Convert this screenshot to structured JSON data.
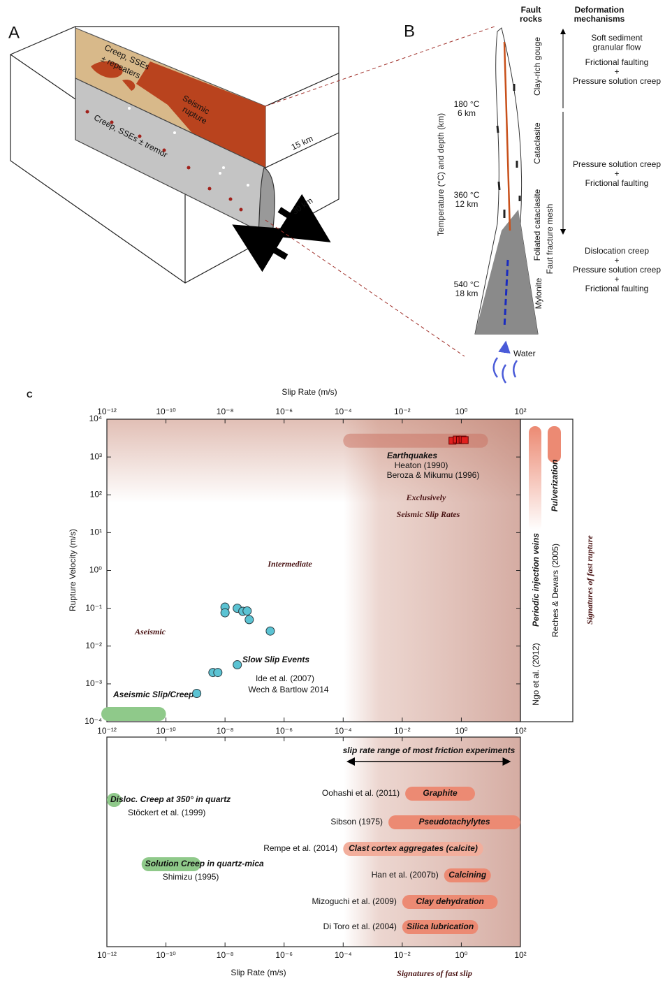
{
  "panel_a": {
    "label": "A",
    "creep_top": [
      "Creep, SSEs",
      "± repeaters"
    ],
    "seismic": [
      "Seismic",
      "rupture"
    ],
    "creep_bottom": "Creep, SSEs ± tremor",
    "depth": "15 km",
    "length": "30 km"
  },
  "panel_b": {
    "label": "B",
    "header_fault_rocks": [
      "Fault",
      "rocks"
    ],
    "header_mechanisms": [
      "Deformation",
      "mechanisms"
    ],
    "axis_label": "Temperature (°C) and depth (km)",
    "depths": [
      {
        "temperature": "180 °C",
        "depth": "6 km"
      },
      {
        "temperature": "360 °C",
        "depth": "12 km"
      },
      {
        "temperature": "540 °C",
        "depth": "18 km"
      }
    ],
    "fault_rocks": [
      "Clay-rich gouge",
      "Cataclasite",
      "Foliated cataclasite",
      "Faut fracture mesh",
      "Mylonite"
    ],
    "mechanisms": [
      [
        "Soft sediment",
        "granular flow"
      ],
      [
        "Frictional faulting",
        "+",
        "Pressure solution creep"
      ],
      [
        "Pressure solution creep",
        "+",
        "Frictional faulting"
      ],
      [
        "Dislocation creep",
        "+",
        "Pressure solution creep",
        "+",
        "Frictional faulting"
      ]
    ],
    "water": "Water"
  },
  "chart_data": {
    "type": "scatter",
    "label": "C",
    "x_label": "Slip Rate (m/s)",
    "y_label": "Rupture Velocity (m/s)",
    "x_log": true,
    "y_log": true,
    "xlim": [
      1e-12,
      100
    ],
    "ylim": [
      0.0001,
      10000
    ],
    "xticks": [
      {
        "value": 1e-12,
        "label": "10⁻¹²"
      },
      {
        "value": 1e-10,
        "label": "10⁻¹⁰"
      },
      {
        "value": 1e-08,
        "label": "10⁻⁸"
      },
      {
        "value": 1e-06,
        "label": "10⁻⁶"
      },
      {
        "value": 0.0001,
        "label": "10⁻⁴"
      },
      {
        "value": 0.01,
        "label": "10⁻²"
      },
      {
        "value": 1,
        "label": "10⁰"
      },
      {
        "value": 100,
        "label": "10²"
      }
    ],
    "yticks": [
      {
        "value": 0.0001,
        "label": "10⁻⁴"
      },
      {
        "value": 0.001,
        "label": "10⁻³"
      },
      {
        "value": 0.01,
        "label": "10⁻²"
      },
      {
        "value": 0.1,
        "label": "10⁻¹"
      },
      {
        "value": 1,
        "label": "10⁰"
      },
      {
        "value": 10,
        "label": "10¹"
      },
      {
        "value": 100,
        "label": "10²"
      },
      {
        "value": 1000,
        "label": "10³"
      },
      {
        "value": 10000,
        "label": "10⁴"
      }
    ],
    "series": [
      {
        "name": "Slow Slip Events",
        "color": "#5bc3d3",
        "marker": "circle",
        "references": [
          "Ide et al. (2007)",
          "Wech & Bartlow 2014"
        ],
        "x": [
          1.1e-09,
          3.9e-09,
          5.7e-09,
          2.6e-08,
          1e-08,
          1e-08,
          2.6e-08,
          4e-08,
          5.6e-08,
          6.6e-08,
          3.4e-07
        ],
        "values": [
          0.00056,
          0.002,
          0.002,
          0.0032,
          0.107,
          0.076,
          0.1,
          0.083,
          0.085,
          0.05,
          0.025
        ]
      },
      {
        "name": "Earthquakes",
        "color": "#e0201e",
        "marker": "square",
        "references": [
          "Heaton (1990)",
          "Beroza & Mikumu (1996)"
        ],
        "x": [
          0.5,
          0.7,
          0.9,
          1.1,
          1.3
        ],
        "values": [
          2700,
          2900,
          2800,
          2900,
          2800
        ],
        "band_x": [
          0.0001,
          8
        ]
      }
    ],
    "creep_range": {
      "name": "Aseismic Slip/Creep",
      "color": "#8fc98a",
      "x": [
        1e-12,
        1e-10
      ],
      "value": 0.00016
    },
    "regions": {
      "aseismic": "Aseismic",
      "intermediate": "Intermediate",
      "seismic": [
        "Exclusively",
        "Seismic Slip Rates"
      ]
    },
    "friction_range": {
      "label": "slip rate range of most friction experiments",
      "x": [
        0.00014,
        44
      ]
    },
    "experiments": [
      {
        "label": "Disloc. Creep at 350° in quartz",
        "reference": "Stöckert et al. (1999)",
        "color": "#8fc98a",
        "x": [
          1e-12,
          3.1e-12
        ]
      },
      {
        "label": "Graphite",
        "reference": "Oohashi et al. (2011)",
        "color": "#ec8a73",
        "x": [
          0.0126,
          2.9
        ]
      },
      {
        "label": "Pseudotachylytes",
        "reference": "Sibson (1975)",
        "color": "#ec8a73",
        "x": [
          0.0034,
          100
        ]
      },
      {
        "label": "Clast cortex aggregates (calcite)",
        "reference": "Rempe et al. (2014)",
        "color": "#f2ae9c",
        "x": [
          0.0001,
          5.5
        ]
      },
      {
        "label": "Solution Creep in quartz-mica",
        "reference": "Shimizu (1995)",
        "color": "#8fc98a",
        "x": [
          1.5e-11,
          1.5e-09
        ]
      },
      {
        "label": "Calcining",
        "reference": "Han et al. (2007b)",
        "color": "#ec8a73",
        "x": [
          0.26,
          10
        ]
      },
      {
        "label": "Clay dehydration",
        "reference": "Mizoguchi et al. (2009)",
        "color": "#ec8a73",
        "x": [
          0.01,
          17
        ]
      },
      {
        "label": "Silica lubrication",
        "reference": "Di Toro et al. (2004)",
        "color": "#ec8a73",
        "x": [
          0.01,
          3.7
        ]
      }
    ],
    "fast_slip_title": "Signatures of fast slip",
    "fast_rupture": {
      "title": "Signatures of fast rupture",
      "items": [
        {
          "label": "Periodic injection veins",
          "reference": "Ngo et al. (2012)"
        },
        {
          "label": "Pulverization",
          "reference": "Reches & Dewars (2005)"
        }
      ]
    }
  }
}
